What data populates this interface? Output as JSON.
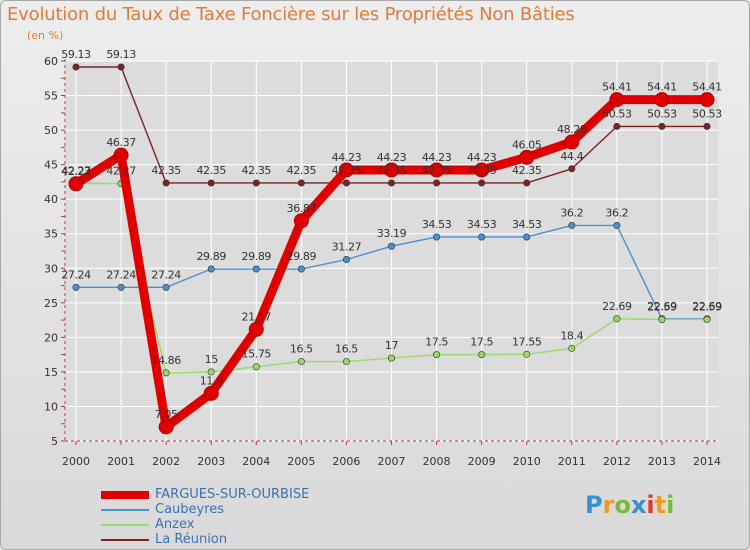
{
  "page": {
    "title": "Evolution du Taux de Taxe Foncière sur les Propriétés Non Bâties",
    "unit": "(en %)",
    "brand": "Proxiti"
  },
  "colors": {
    "title": "#e07b39",
    "grid": "#ffffff",
    "axis": "#cc3333"
  },
  "chart_data": {
    "type": "line",
    "title": "Evolution du Taux de Taxe Foncière sur les Propriétés Non Bâties",
    "ylabel": "(en %)",
    "xlabel": "",
    "ylim": [
      5,
      60
    ],
    "yticks": [
      5,
      10,
      15,
      20,
      25,
      30,
      35,
      40,
      45,
      50,
      55,
      60
    ],
    "x": [
      "2000",
      "2001",
      "2002",
      "2003",
      "2004",
      "2005",
      "2006",
      "2007",
      "2008",
      "2009",
      "2010",
      "2011",
      "2012",
      "2013",
      "2014"
    ],
    "series": [
      {
        "name": "FARGUES-SUR-OURBISE",
        "color": "#e00000",
        "labels": [
          "42.23",
          "46.37",
          "7.05",
          "11.9",
          "21.17",
          "36.87",
          "44.23",
          "44.23",
          "44.23",
          "44.23",
          "46.05",
          "48.28",
          "54.41",
          "54.41",
          "54.41"
        ],
        "values": [
          42.23,
          46.37,
          7.05,
          11.9,
          21.17,
          36.87,
          44.23,
          44.23,
          44.23,
          44.23,
          46.05,
          48.28,
          54.41,
          54.41,
          54.41
        ]
      },
      {
        "name": "Caubeyres",
        "color": "#4a8fcf",
        "labels": [
          "27.24",
          "27.24",
          "27.24",
          "29.89",
          "29.89",
          "29.89",
          "31.27",
          "33.19",
          "34.53",
          "34.53",
          "34.53",
          "36.2",
          "36.2",
          "22.69",
          "22.69"
        ],
        "values": [
          27.24,
          27.24,
          27.24,
          29.89,
          29.89,
          29.89,
          31.27,
          33.19,
          34.53,
          34.53,
          34.53,
          36.2,
          36.2,
          22.69,
          22.69
        ]
      },
      {
        "name": "Anzex",
        "color": "#99d966",
        "labels": [
          "42.27",
          "42.27",
          "14.86",
          "15",
          "15.75",
          "16.5",
          "16.5",
          "17",
          "17.5",
          "17.5",
          "17.55",
          "18.4",
          "22.69",
          "22.59",
          "22.59"
        ],
        "values": [
          42.27,
          42.27,
          14.86,
          15,
          15.75,
          16.5,
          16.5,
          17,
          17.5,
          17.5,
          17.55,
          18.4,
          22.69,
          22.59,
          22.59
        ]
      },
      {
        "name": "La Réunion",
        "color": "#7a2424",
        "labels": [
          "59.13",
          "59.13",
          "42.35",
          "42.35",
          "42.35",
          "42.35",
          "42.35",
          "42.35",
          "42.35",
          "42.35",
          "42.35",
          "44.4",
          "50.53",
          "50.53",
          "50.53"
        ],
        "values": [
          59.13,
          59.13,
          42.35,
          42.35,
          42.35,
          42.35,
          42.35,
          42.35,
          42.35,
          42.35,
          42.35,
          44.4,
          50.53,
          50.53,
          50.53
        ]
      }
    ],
    "legend": {
      "position": "bottom-left"
    }
  }
}
